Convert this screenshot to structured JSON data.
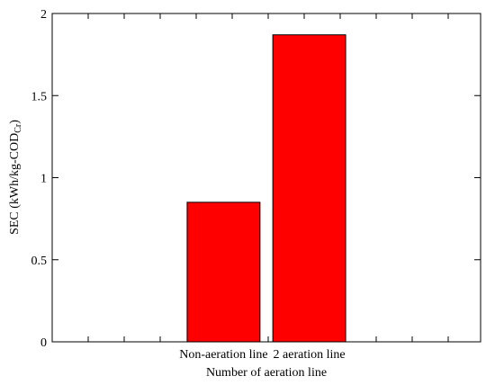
{
  "chart_data": {
    "type": "bar",
    "categories": [
      "Non-aeration line",
      "2 aeration line"
    ],
    "values": [
      0.85,
      1.87
    ],
    "xlabel": "Number of aeration line",
    "ylabel": {
      "main": "SEC (kWh/kg-COD",
      "subscript": "Cr",
      "close": ")"
    },
    "ylim": [
      0,
      2
    ],
    "yticks": [
      0,
      0.5,
      1,
      1.5,
      2
    ],
    "ytick_labels": [
      "0",
      "0.5",
      "1",
      "1.5",
      "2"
    ],
    "bar_color": "#ff0000",
    "bar_edge_color": "#000000",
    "grid": false,
    "legend": false
  }
}
